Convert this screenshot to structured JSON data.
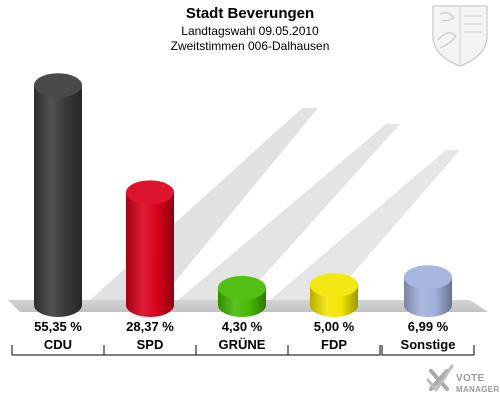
{
  "chart_data": {
    "type": "bar",
    "title": "Stadt Beverungen",
    "subtitle_lines": [
      "Landtagswahl 09.05.2010",
      "Zweitstimmen 006-Dalhausen"
    ],
    "categories": [
      "CDU",
      "SPD",
      "GRÜNE",
      "FDP",
      "Sonstige"
    ],
    "values": [
      55.35,
      28.37,
      4.3,
      5.0,
      6.99
    ],
    "value_labels": [
      "55,35 %",
      "28,37 %",
      "4,30 %",
      "5,00 %",
      "6,99 %"
    ],
    "colors": [
      "#3a3a3a",
      "#d9001b",
      "#44bb00",
      "#f2e600",
      "#a2b0da"
    ],
    "unit": "%",
    "grid": false,
    "legend": "none",
    "ylim": [
      0,
      60
    ]
  },
  "branding": {
    "logo_line1": "VOTE",
    "logo_line2": "MANAGER",
    "crest_icon": "coat-of-arms-icon"
  }
}
